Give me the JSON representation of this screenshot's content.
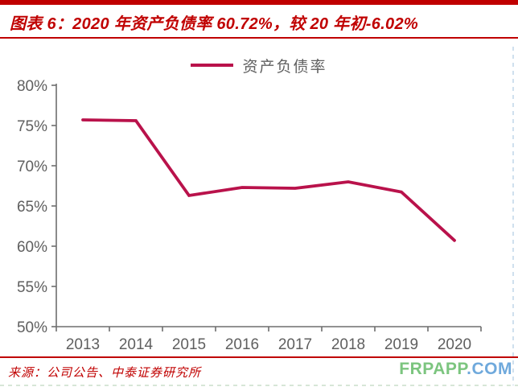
{
  "figure": {
    "title": "图表 6：2020 年资产负债率 60.72%，较 20 年初-6.02%",
    "source": "来源：公司公告、中泰证券研究所"
  },
  "legend": {
    "label": "资产负债率"
  },
  "watermark": {
    "name": "FRPAPP",
    "domain": ".COM"
  },
  "colors": {
    "accent_red": "#c00000",
    "series_line": "#b9124b",
    "axis": "#6e6e6e",
    "tick_label": "#5f5f5f",
    "watermark_green": "#7cc57f",
    "watermark_blue": "#6fa9dc"
  },
  "chart_data": {
    "type": "line",
    "categories": [
      "2013",
      "2014",
      "2015",
      "2016",
      "2017",
      "2018",
      "2019",
      "2020"
    ],
    "series": [
      {
        "name": "资产负债率",
        "values": [
          75.7,
          75.6,
          66.3,
          67.3,
          67.2,
          68.0,
          66.74,
          60.72
        ]
      }
    ],
    "title": "",
    "xlabel": "",
    "ylabel": "",
    "ylim": [
      50,
      80
    ],
    "ytick_step": 5,
    "ytick_suffix": "%",
    "grid": false,
    "legend_position": "top-center"
  }
}
